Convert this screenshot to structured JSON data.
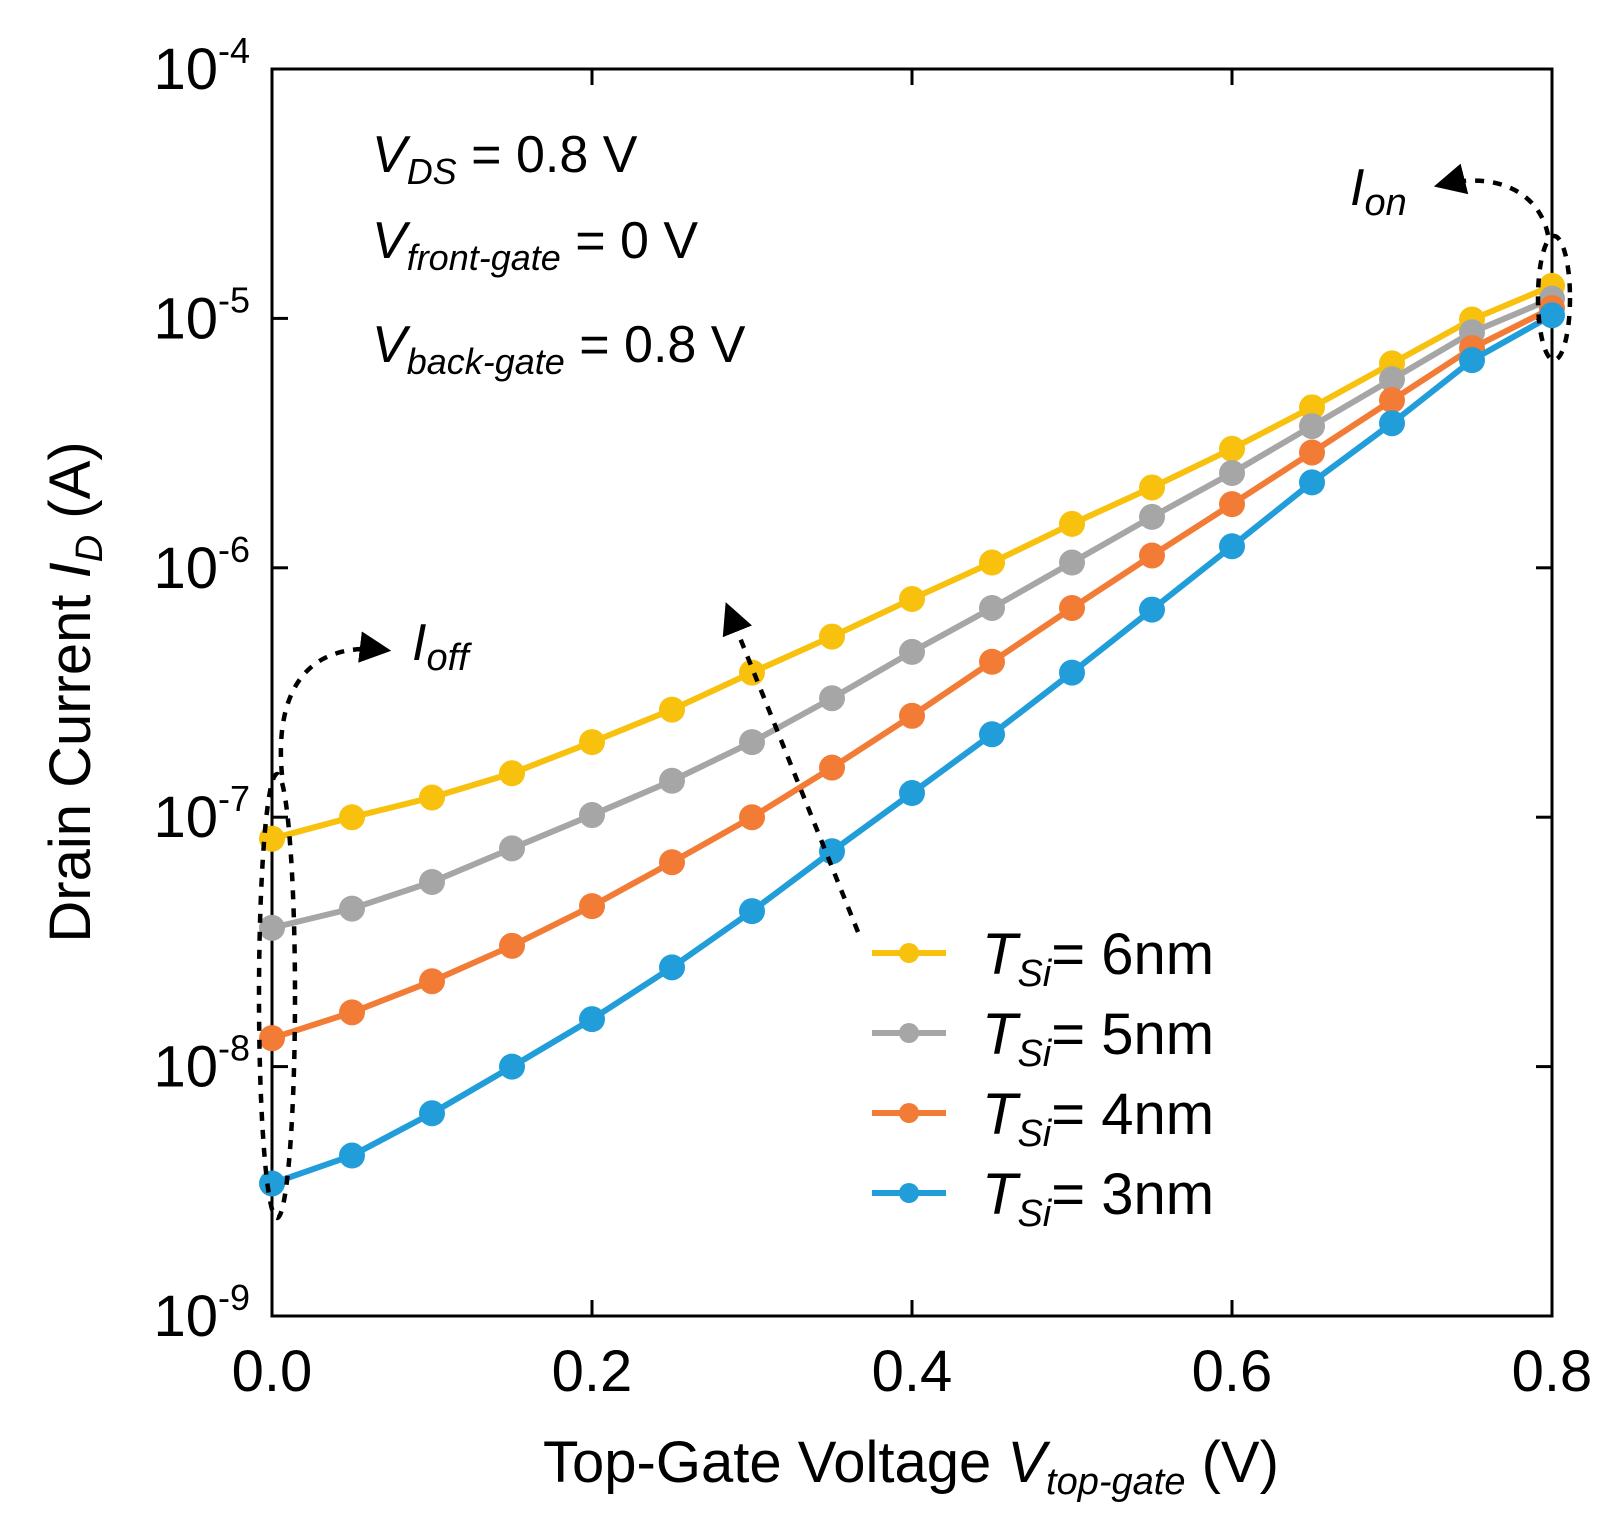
{
  "chart_data": {
    "type": "line",
    "x_scale": "linear",
    "y_scale": "log",
    "xlim": [
      0.0,
      0.8
    ],
    "ylim": [
      1e-09,
      0.0001
    ],
    "x_ticks": [
      "0.0",
      "0.2",
      "0.4",
      "0.6",
      "0.8"
    ],
    "y_ticks": [
      {
        "base": "10",
        "exp": "-4"
      },
      {
        "base": "10",
        "exp": "-5"
      },
      {
        "base": "10",
        "exp": "-6"
      },
      {
        "base": "10",
        "exp": "-7"
      },
      {
        "base": "10",
        "exp": "-8"
      },
      {
        "base": "10",
        "exp": "-9"
      }
    ],
    "xlabel": {
      "text": "Top-Gate Voltage ",
      "var": "V",
      "sub": "top-gate",
      "unit": " (V)"
    },
    "ylabel": {
      "text": "Drain Current ",
      "var": "I",
      "sub": "D",
      "unit": " (A)"
    },
    "conditions": [
      {
        "var": "V",
        "sub": "DS",
        "value": " = 0.8 V"
      },
      {
        "var": "V",
        "sub": "front-gate",
        "value": " = 0 V"
      },
      {
        "var": "V",
        "sub": "back-gate",
        "value": " = 0.8 V"
      }
    ],
    "annotations": [
      {
        "var": "I",
        "sub": "off"
      },
      {
        "var": "I",
        "sub": "on"
      }
    ],
    "x": [
      0.0,
      0.05,
      0.1,
      0.15,
      0.2,
      0.25,
      0.3,
      0.35,
      0.4,
      0.45,
      0.5,
      0.55,
      0.6,
      0.65,
      0.7,
      0.75,
      0.8
    ],
    "series": [
      {
        "name": "T_Si= 6nm",
        "legend_var": "T",
        "legend_sub": "Si",
        "legend_value": "= 6nm",
        "color": "#F7C10E",
        "values": [
          8.2e-08,
          1e-07,
          1.2e-07,
          1.5e-07,
          2e-07,
          2.7e-07,
          3.8e-07,
          5.3e-07,
          7.5e-07,
          1.05e-06,
          1.5e-06,
          2.1e-06,
          3e-06,
          4.4e-06,
          6.6e-06,
          9.9e-06,
          1.35e-05
        ]
      },
      {
        "name": "T_Si= 5nm",
        "legend_var": "T",
        "legend_sub": "Si",
        "legend_value": "= 5nm",
        "color": "#A6A6A6",
        "values": [
          3.6e-08,
          4.3e-08,
          5.5e-08,
          7.5e-08,
          1.02e-07,
          1.4e-07,
          2e-07,
          3e-07,
          4.6e-07,
          6.9e-07,
          1.05e-06,
          1.6e-06,
          2.4e-06,
          3.7e-06,
          5.7e-06,
          8.8e-06,
          1.2e-05
        ]
      },
      {
        "name": "T_Si= 4nm",
        "legend_var": "T",
        "legend_sub": "Si",
        "legend_value": "= 4nm",
        "color": "#F27B35",
        "values": [
          1.3e-08,
          1.65e-08,
          2.2e-08,
          3.05e-08,
          4.4e-08,
          6.6e-08,
          1e-07,
          1.58e-07,
          2.55e-07,
          4.2e-07,
          6.9e-07,
          1.12e-06,
          1.8e-06,
          2.9e-06,
          4.7e-06,
          7.6e-06,
          1.1e-05
        ]
      },
      {
        "name": "T_Si= 3nm",
        "legend_var": "T",
        "legend_sub": "Si",
        "legend_value": "= 3nm",
        "color": "#219DDA",
        "values": [
          3.4e-09,
          4.4e-09,
          6.5e-09,
          1e-08,
          1.55e-08,
          2.5e-08,
          4.2e-08,
          7.3e-08,
          1.25e-07,
          2.15e-07,
          3.8e-07,
          6.8e-07,
          1.22e-06,
          2.2e-06,
          3.8e-06,
          6.8e-06,
          1.03e-05
        ]
      }
    ]
  }
}
